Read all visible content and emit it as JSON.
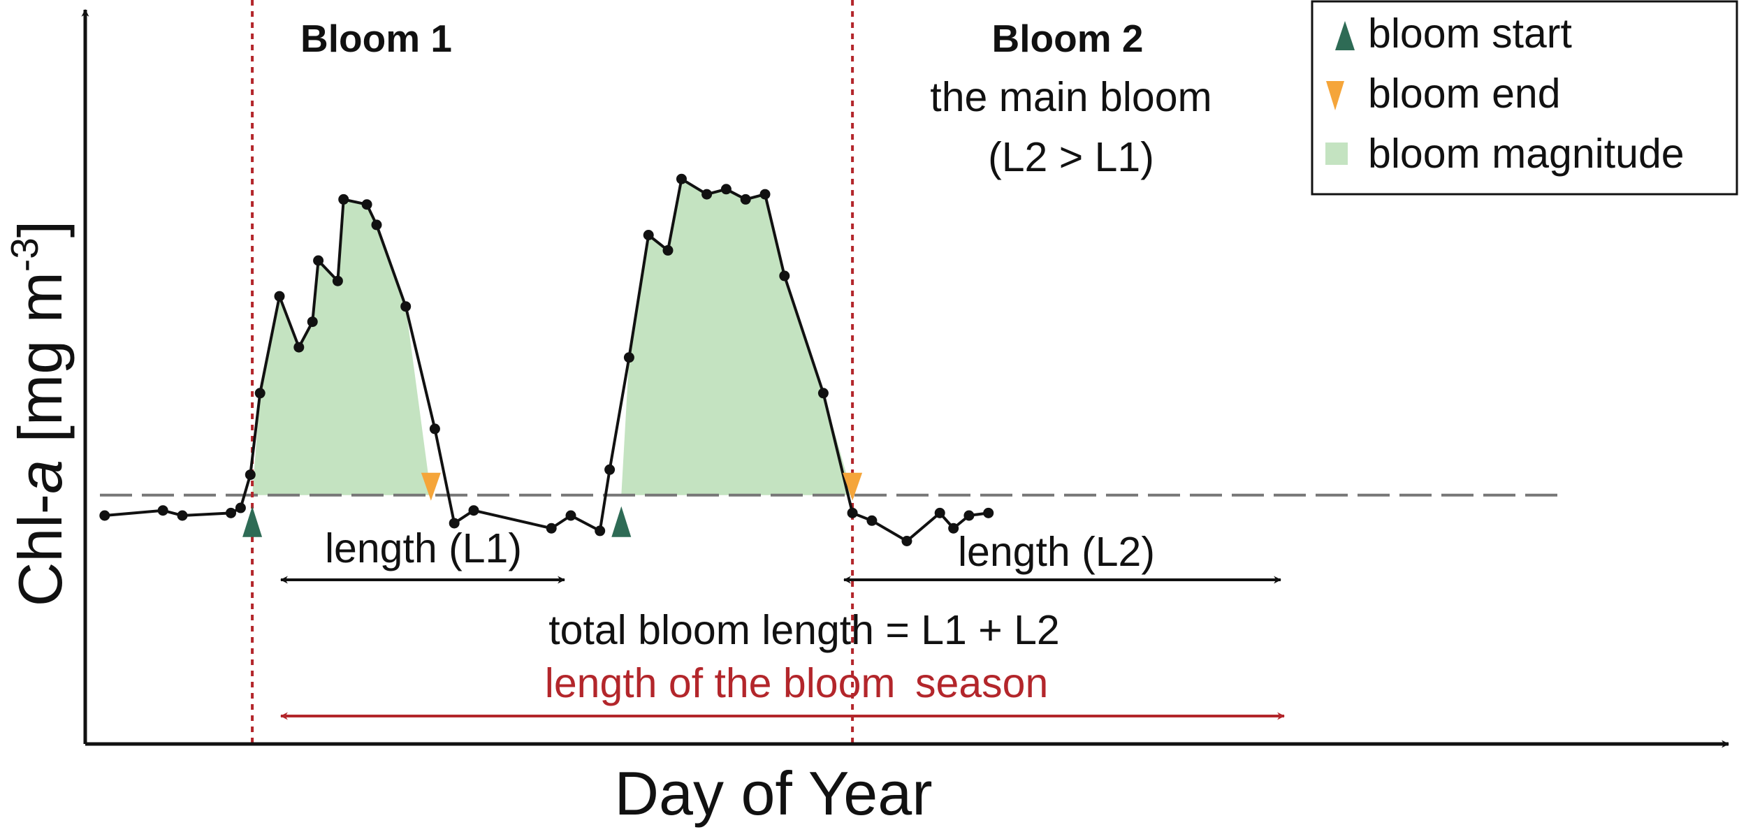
{
  "axes": {
    "xlabel": "Day of Year",
    "ylabel_prefix": "Chl-",
    "ylabel_italic": "a",
    "ylabel_unit": " [mg m",
    "ylabel_sup": "-3",
    "ylabel_close": "]"
  },
  "blooms": {
    "b1_title": "Bloom 1",
    "b2_title": "Bloom 2",
    "b2_sub1": "the main bloom",
    "b2_sub2": "(L2 > L1)"
  },
  "lengths": {
    "l1": "length (L1)",
    "l2": "length (L2)",
    "total": "total bloom length = L1 + L2",
    "season_part1": "length of the bloom",
    "season_part2": "season"
  },
  "legend": {
    "start": "bloom start",
    "end": "bloom end",
    "magnitude": "bloom magnitude"
  },
  "colors": {
    "start_marker": "#2e6b55",
    "end_marker": "#f5a53a",
    "fill": "#c4e3c1",
    "season": "#b3262b",
    "threshold": "#777777",
    "line": "#111111"
  },
  "chart_data": {
    "type": "line",
    "x": [
      1,
      4,
      5,
      7.5,
      8,
      8.5,
      9,
      10,
      11,
      11.7,
      12,
      13,
      13.3,
      14.5,
      15,
      16.5,
      18,
      19,
      20,
      24,
      25,
      26.5,
      27,
      28,
      29,
      30,
      30.7,
      32,
      33,
      34,
      35,
      36,
      38,
      39.5,
      40.5,
      42.3,
      44,
      44.7,
      45.5,
      46.5
    ],
    "y": [
      0.0,
      0.1,
      0.0,
      0.05,
      0.15,
      0.8,
      2.4,
      4.3,
      3.3,
      3.8,
      5.0,
      4.6,
      6.2,
      6.1,
      5.7,
      4.1,
      1.7,
      -0.15,
      0.1,
      -0.25,
      0.0,
      -0.3,
      0.9,
      3.1,
      5.5,
      5.2,
      6.6,
      6.3,
      6.4,
      6.2,
      6.3,
      4.7,
      2.4,
      0.05,
      -0.1,
      -0.5,
      0.05,
      -0.25,
      0.0,
      0.05
    ],
    "threshold": 0.4,
    "bloom_starts": [
      8.6,
      27.6
    ],
    "bloom_ends": [
      17.8,
      39.5
    ],
    "season": [
      8.6,
      39.5
    ]
  }
}
